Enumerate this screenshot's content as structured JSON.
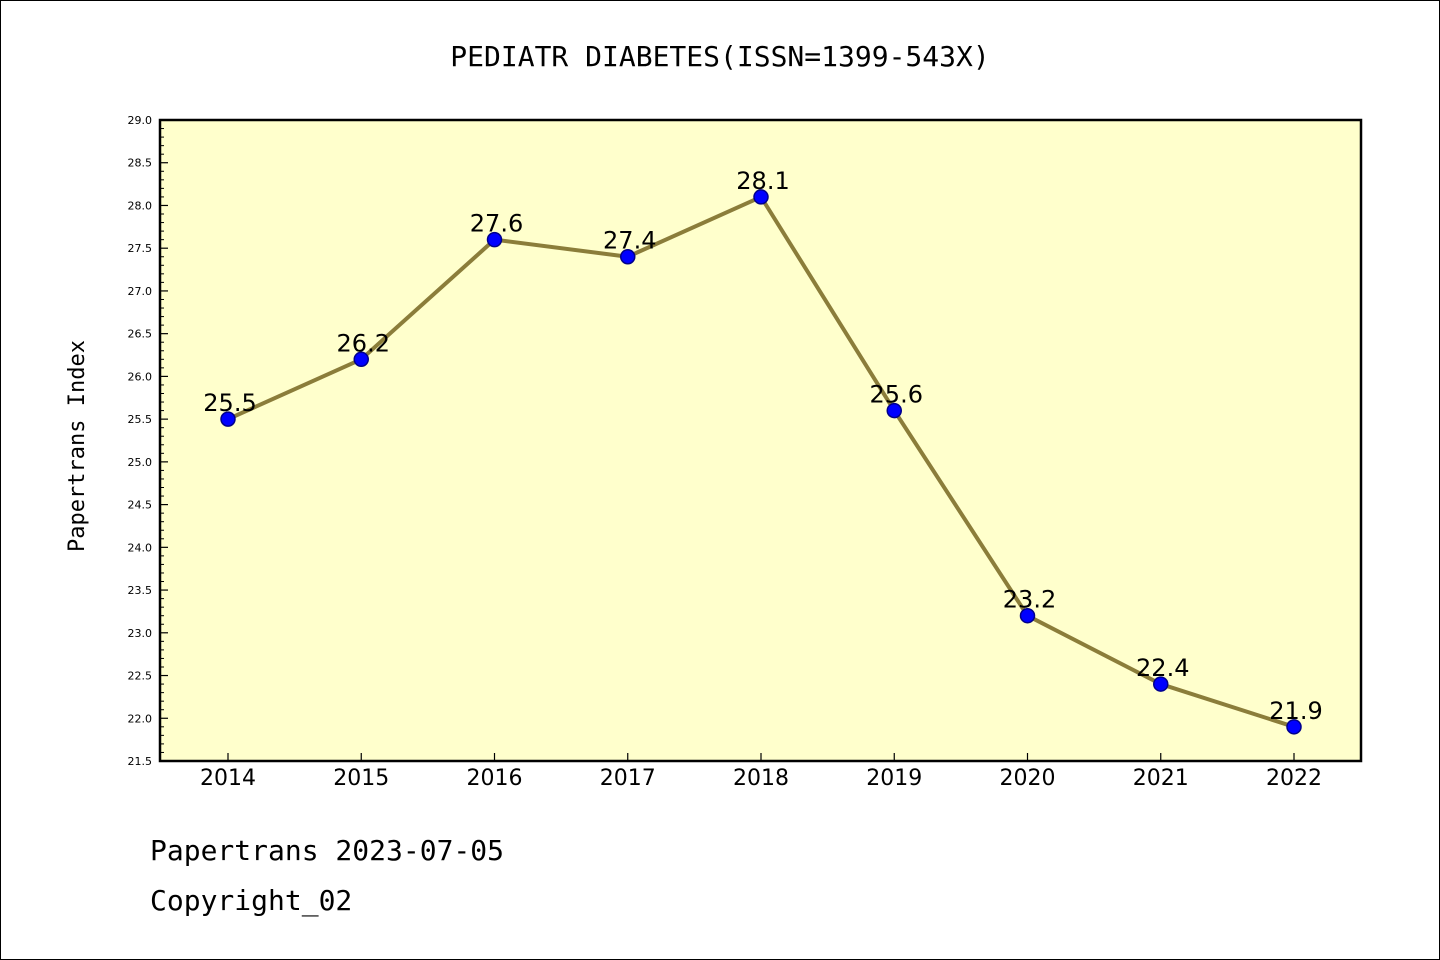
{
  "chart_data": {
    "type": "line",
    "title": "PEDIATR DIABETES(ISSN=1399-543X)",
    "xlabel": "",
    "ylabel": "Papertrans Index",
    "x": [
      "2014",
      "2015",
      "2016",
      "2017",
      "2018",
      "2019",
      "2020",
      "2021",
      "2022"
    ],
    "series": [
      {
        "values": [
          25.5,
          26.2,
          27.6,
          27.4,
          28.1,
          25.6,
          23.2,
          22.4,
          21.9
        ],
        "data_labels": [
          "25.5",
          "26.2",
          "27.6",
          "27.4",
          "28.1",
          "25.6",
          "23.2",
          "22.4",
          "21.9"
        ]
      }
    ],
    "ylim": [
      21.5,
      29.0
    ],
    "yticks": [
      "21.5",
      "22.0",
      "22.5",
      "23.0",
      "23.5",
      "24.0",
      "24.5",
      "25.0",
      "25.5",
      "26.0",
      "26.5",
      "27.0",
      "27.5",
      "28.0",
      "28.5",
      "29.0"
    ],
    "grid": false,
    "legend": "none",
    "colors": {
      "plot_background": "#ffffcc",
      "line": "#8b7d3a",
      "marker": "#0000ff",
      "marker_edge": "#00008b"
    }
  },
  "footer": {
    "line1": "Papertrans 2023-07-05",
    "line2": "Copyright_02"
  }
}
